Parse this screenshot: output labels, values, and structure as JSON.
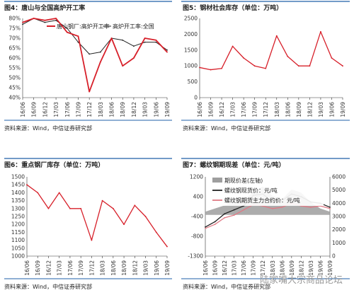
{
  "watermark": "陆家嘴大宗商品论坛",
  "charts": [
    {
      "title": "图4：唐山与全国高炉开工率",
      "source": "资料来源：Wind，中信证券研究部",
      "legend": [
        "唐山钢厂:高炉开工率",
        "高炉开工率:全国"
      ],
      "y_ticks": [
        "80%",
        "75%",
        "70%",
        "65%",
        "60%",
        "55%",
        "50%",
        "45%",
        "40%"
      ],
      "x_ticks": [
        "16/06",
        "16/09",
        "16/12",
        "17/03",
        "17/06",
        "17/09",
        "17/12",
        "18/03",
        "18/06",
        "18/09",
        "18/12",
        "19/03",
        "19/06",
        "19/09"
      ],
      "colors": {
        "series1": "#d7202a",
        "series2": "#222222"
      }
    },
    {
      "title": "图5：钢材社会库存（单位：万吨）",
      "source": "资料来源：Wind，中信证券研究部",
      "y_ticks": [
        "2500",
        "2000",
        "1500",
        "1000",
        "500",
        "0"
      ],
      "x_ticks": [
        "16/06",
        "16/09",
        "16/12",
        "17/03",
        "17/06",
        "17/09",
        "17/12",
        "18/03",
        "18/06",
        "18/09",
        "18/12",
        "19/03",
        "19/06",
        "19/09"
      ],
      "colors": {
        "series1": "#d7202a"
      }
    },
    {
      "title": "图6：重点钢厂库存（单位：万吨）",
      "source": "资料来源：Wind，中信证券研究部",
      "y_ticks": [
        "1500",
        "1450",
        "1400",
        "1350",
        "1300",
        "1250",
        "1200",
        "1150",
        "1100",
        "1050",
        "1000"
      ],
      "x_ticks": [
        "16/06",
        "16/09",
        "16/12",
        "17/03",
        "17/06",
        "17/09",
        "17/12",
        "18/03",
        "18/06",
        "18/09",
        "18/12",
        "19/03",
        "19/06",
        "19/09"
      ],
      "colors": {
        "series1": "#d7202a"
      }
    },
    {
      "title": "图7：螺纹钢期现差（单位：元/吨）",
      "source": "资料来源：Wind，中信证券研究部",
      "legend": [
        "期现价差(左轴)",
        "螺纹钢现货价：元/吨",
        "螺纹钢期货主力合约价：元/吨"
      ],
      "y_ticks_left": [
        "1200",
        "400",
        "-400",
        "-800",
        "-1300"
      ],
      "y_ticks_right": [
        "6000",
        "5000",
        "4000",
        "3000",
        "2000",
        "1000",
        "0"
      ],
      "x_ticks": [
        "16/06",
        "16/09",
        "16/12",
        "17/03",
        "17/06",
        "17/09",
        "17/12",
        "18/03",
        "18/06",
        "18/09",
        "18/12",
        "19/03",
        "19/06",
        "19/09"
      ],
      "colors": {
        "spread": "#9e9e9e",
        "spot": "#222222",
        "futures": "#e07a85"
      }
    }
  ],
  "chart_data": [
    {
      "type": "line",
      "title": "图4：唐山与全国高炉开工率",
      "x": [
        "16/06",
        "16/09",
        "16/12",
        "17/03",
        "17/06",
        "17/09",
        "17/12",
        "18/03",
        "18/06",
        "18/09",
        "18/12",
        "19/03",
        "19/06",
        "19/09"
      ],
      "ylim": [
        40,
        80
      ],
      "series": [
        {
          "name": "唐山钢厂:高炉开工率",
          "values": [
            78,
            80,
            79,
            80,
            73,
            71,
            43,
            58,
            70,
            56,
            60,
            70,
            69,
            63
          ],
          "x": [
            "16/06",
            "16/09",
            "16/12",
            "17/03",
            "17/06",
            "17/09",
            "17/12",
            "18/03",
            "18/06",
            "18/09",
            "18/12",
            "19/03",
            "19/06",
            "19/09"
          ]
        },
        {
          "name": "高炉开工率:全国",
          "values": [
            77,
            80,
            78,
            79,
            75,
            68,
            62,
            63,
            70,
            69,
            66,
            68,
            68,
            64
          ],
          "x": [
            "16/06",
            "16/09",
            "16/12",
            "17/03",
            "17/06",
            "17/09",
            "17/12",
            "18/03",
            "18/06",
            "18/09",
            "18/12",
            "19/03",
            "19/06",
            "19/09"
          ]
        }
      ]
    },
    {
      "type": "line",
      "title": "图5：钢材社会库存（单位：万吨）",
      "x": [
        "16/06",
        "16/09",
        "16/12",
        "17/03",
        "17/06",
        "17/09",
        "17/12",
        "18/03",
        "18/06",
        "18/09",
        "18/12",
        "19/03",
        "19/06",
        "19/09"
      ],
      "ylim": [
        0,
        2500
      ],
      "series": [
        {
          "values": [
            950,
            880,
            920,
            1620,
            1250,
            1000,
            920,
            1950,
            1300,
            1000,
            1000,
            2080,
            1250,
            1000
          ]
        }
      ]
    },
    {
      "type": "line",
      "title": "图6：重点钢厂库存（单位：万吨）",
      "x": [
        "16/06",
        "16/09",
        "16/12",
        "17/03",
        "17/06",
        "17/09",
        "17/12",
        "18/03",
        "18/06",
        "18/09",
        "18/12",
        "19/03",
        "19/06",
        "19/09"
      ],
      "ylim": [
        1000,
        1500
      ],
      "series": [
        {
          "values": [
            1450,
            1400,
            1300,
            1400,
            1300,
            1300,
            1100,
            1350,
            1300,
            1200,
            1320,
            1250,
            1150,
            1060
          ]
        }
      ]
    },
    {
      "type": "line",
      "title": "图7：螺纹钢期现差（单位：元/吨）",
      "x": [
        "16/06",
        "16/09",
        "16/12",
        "17/03",
        "17/06",
        "17/09",
        "17/12",
        "18/03",
        "18/06",
        "18/09",
        "18/12",
        "19/03",
        "19/06",
        "19/09"
      ],
      "series": [
        {
          "name": "期现价差(左轴)",
          "values": [
            100,
            200,
            300,
            400,
            500,
            700,
            900,
            600,
            500,
            800,
            700,
            400,
            200,
            100
          ]
        },
        {
          "name": "螺纹钢现货价：元/吨",
          "values": [
            2200,
            2600,
            3200,
            3500,
            3800,
            4600,
            4700,
            4100,
            4200,
            4700,
            4500,
            4100,
            4000,
            3700
          ]
        },
        {
          "name": "螺纹钢期货主力合约价：元/吨",
          "values": [
            2100,
            2400,
            2900,
            3100,
            3500,
            3900,
            3800,
            3600,
            3700,
            4000,
            3800,
            3700,
            3800,
            3600
          ]
        }
      ]
    }
  ]
}
